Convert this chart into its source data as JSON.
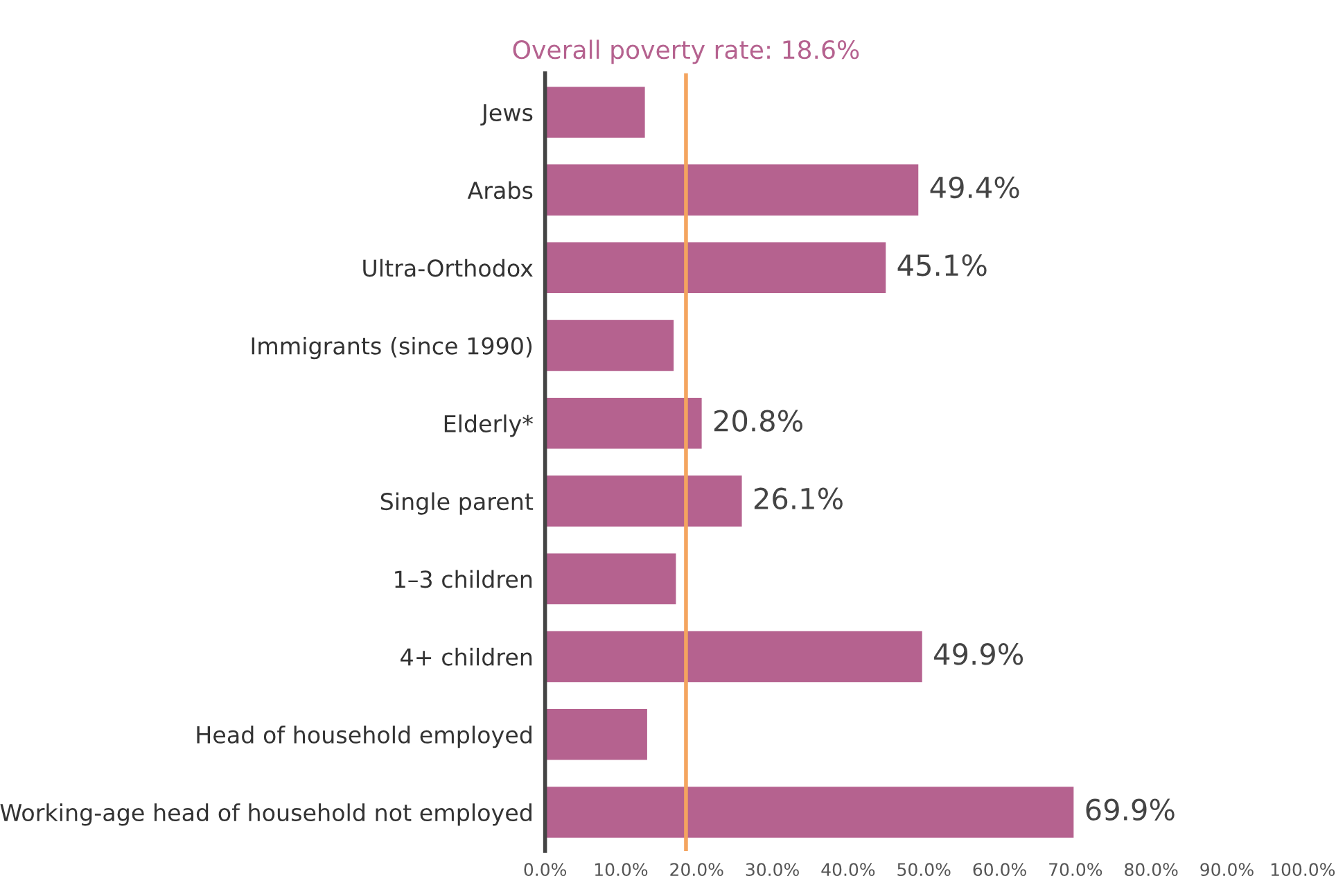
{
  "chart_data": {
    "type": "bar",
    "orientation": "horizontal",
    "categories": [
      "Jews",
      "Arabs",
      "Ultra-Orthodox",
      "Immigrants (since 1990)",
      "Elderly*",
      "Single parent",
      "1–3 children",
      "4+ children",
      "Head of household employed",
      "Working-age head of household not employed"
    ],
    "values": [
      13.3,
      49.4,
      45.1,
      17.1,
      20.8,
      26.1,
      17.4,
      49.9,
      13.6,
      69.9
    ],
    "value_labels": [
      null,
      "49.4%",
      "45.1%",
      null,
      "20.8%",
      "26.1%",
      null,
      "49.9%",
      null,
      "69.9%"
    ],
    "color": "#b5628f",
    "xlim": [
      0,
      100
    ],
    "xticks": [
      {
        "value": 0,
        "label": "0.0%"
      },
      {
        "value": 10,
        "label": "10.0%"
      },
      {
        "value": 20,
        "label": "20.0%"
      },
      {
        "value": 30,
        "label": "30.0%"
      },
      {
        "value": 40,
        "label": "40.0%"
      },
      {
        "value": 50,
        "label": "50.0%"
      },
      {
        "value": 60,
        "label": "60.0%"
      },
      {
        "value": 70,
        "label": "70.0%"
      },
      {
        "value": 80,
        "label": "80.0%"
      },
      {
        "value": 90,
        "label": "90.0%"
      },
      {
        "value": 100,
        "label": "100.0%"
      }
    ],
    "ref_lines": [
      {
        "axis": "x",
        "value": 18.6,
        "label": "Overall poverty rate: 18.6%",
        "color": "#f4a45f"
      }
    ],
    "grid": false,
    "legend": false
  }
}
